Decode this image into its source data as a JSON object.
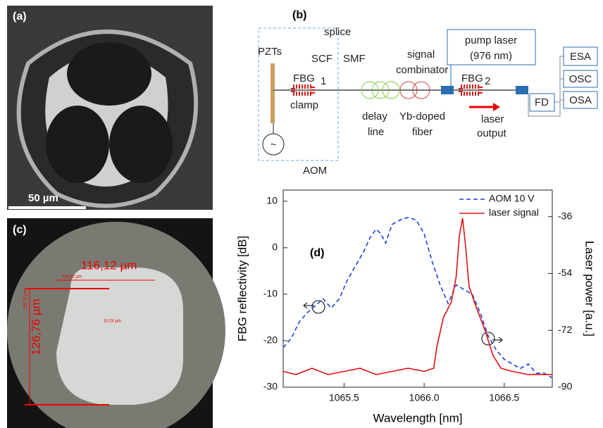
{
  "panel_a": {
    "label": "(a)",
    "scale_bar": "50 µm"
  },
  "panel_b": {
    "label": "(b)",
    "texts": [
      "splice",
      "PZTs",
      "SCF",
      "SMF",
      "signal",
      "combinator",
      "pump laser",
      "(976 nm)",
      "FBG",
      "1",
      "clamp",
      "delay",
      "line",
      "Yb-doped",
      "fiber",
      "FBG",
      "2",
      "laser",
      "output",
      "AOM",
      "FD",
      "ESA",
      "OSC",
      "OSA",
      "~"
    ]
  },
  "panel_c": {
    "label": "(c)",
    "measurements": [
      "116,12 µm",
      "126,76 µm",
      "116,12 µm",
      "126,76 µm",
      "10,24 µm"
    ]
  },
  "chart_data": {
    "type": "line",
    "annotation": "(d)",
    "xlabel": "Wavelength [nm]",
    "ylabel": "FBG reflectivity [dB]",
    "y2label": "Laser power [a.u.]",
    "xlim": [
      1065.12,
      1066.8
    ],
    "xticks": [
      1065.5,
      {
        "value": 1066,
        "label": "1066.0"
      },
      1066.5
    ],
    "ylim": [
      -30,
      12.4
    ],
    "yticks": [
      -30,
      -20,
      -10,
      0,
      10
    ],
    "y2lim": [
      -90,
      -27.6
    ],
    "y2ticks": [
      -90,
      -72,
      -54,
      -36
    ],
    "legend": "upper right",
    "series": [
      {
        "name": "AOM 10 V",
        "color": "#1f3fd6",
        "linestyle": "dashed",
        "x": [
          1065.12,
          1065.17,
          1065.22,
          1065.27,
          1065.32,
          1065.37,
          1065.42,
          1065.47,
          1065.52,
          1065.57,
          1065.62,
          1065.66,
          1065.7,
          1065.73,
          1065.76,
          1065.8,
          1065.85,
          1065.9,
          1065.95,
          1066.0,
          1066.05,
          1066.1,
          1066.15,
          1066.2,
          1066.25,
          1066.3,
          1066.35,
          1066.4,
          1066.45,
          1066.5,
          1066.55,
          1066.6,
          1066.65,
          1066.7,
          1066.75,
          1066.8
        ],
        "values": [
          -21.5,
          -19.5,
          -16,
          -14,
          -12.5,
          -11,
          -13,
          -11,
          -7,
          -4,
          -1,
          2,
          4,
          3,
          1,
          5,
          6,
          6.5,
          6,
          3,
          -3,
          -8,
          -12,
          -8,
          -9,
          -10,
          -14,
          -19,
          -22,
          -24,
          -25,
          -26,
          -25,
          -27,
          -27,
          -28
        ]
      },
      {
        "name": "laser signal",
        "color": "#e01010",
        "linestyle": "solid",
        "axis": "y2",
        "x": [
          1065.12,
          1065.2,
          1065.3,
          1065.4,
          1065.5,
          1065.6,
          1065.7,
          1065.8,
          1065.9,
          1066.0,
          1066.06,
          1066.08,
          1066.12,
          1066.17,
          1066.2,
          1066.22,
          1066.24,
          1066.26,
          1066.28,
          1066.32,
          1066.38,
          1066.43,
          1066.48,
          1066.55,
          1066.65,
          1066.8
        ],
        "values": [
          -85,
          -86,
          -84,
          -86,
          -85,
          -84,
          -86,
          -85,
          -84,
          -85,
          -84,
          -77,
          -68,
          -63,
          -55,
          -42,
          -36.5,
          -46,
          -58,
          -64,
          -72,
          -80,
          -84,
          -85,
          -86,
          -86
        ]
      }
    ]
  }
}
